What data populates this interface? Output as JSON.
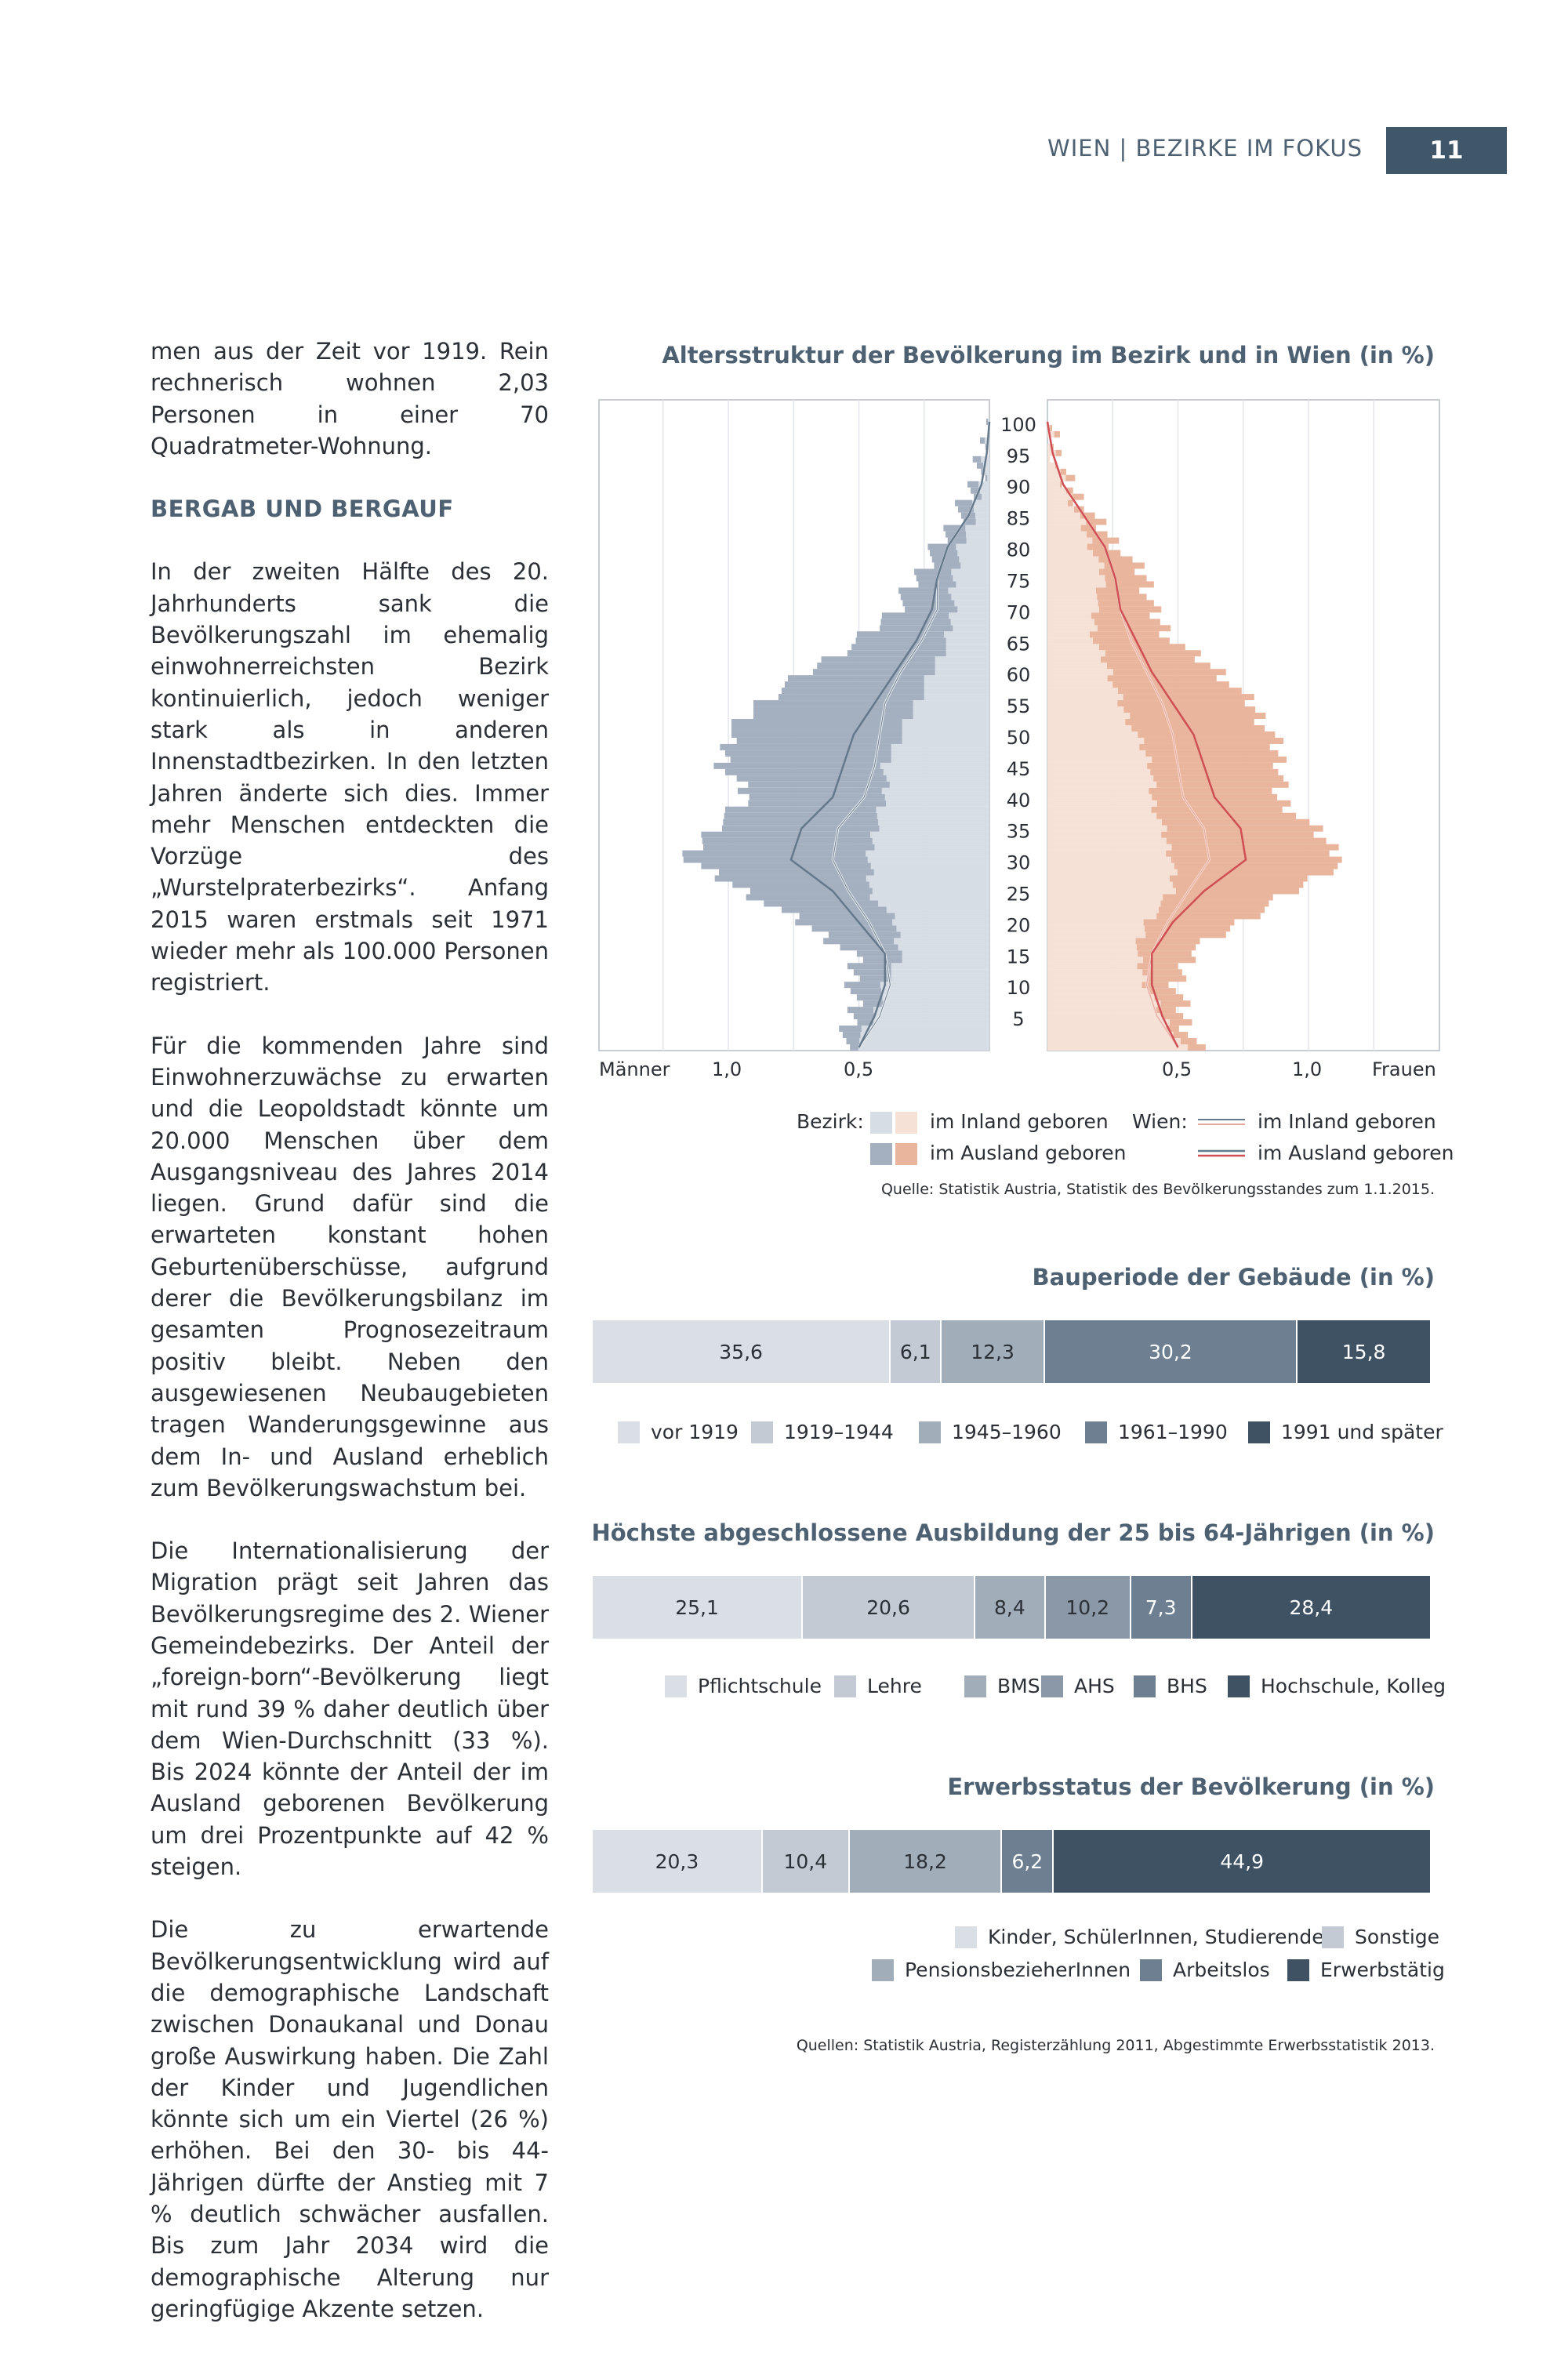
{
  "header": {
    "title": "WIEN | BEZIRKE IM FOKUS",
    "page_number": "11"
  },
  "body": {
    "p1": "men aus der Zeit vor 1919. Rein rechnerisch wohnen 2,03 Personen in einer 70 Quadratmeter-Wohnung.",
    "heading": "BERGAB UND BERGAUF",
    "p2": "In der zweiten Hälfte des 20. Jahrhunderts sank die Bevölkerungszahl im ehemalig einwohnerreichsten Bezirk kontinuierlich, jedoch weniger stark als in anderen Innenstadtbezirken. In den letzten Jahren änderte sich dies. Immer mehr Menschen entdeckten die Vorzüge des „Wurstelpraterbezirks“. Anfang 2015 waren erstmals seit 1971 wieder mehr als 100.000 Personen registriert.",
    "p3": "Für die kommenden Jahre sind Einwohnerzuwächse zu erwarten und die Leopoldstadt könnte um 20.000 Menschen über dem Ausgangsniveau des Jahres 2014 liegen. Grund dafür sind die erwarteten konstant hohen Geburtenüberschüsse, aufgrund derer die Bevölkerungsbilanz im gesamten Prognosezeitraum positiv bleibt. Neben den ausgewiesenen Neubaugebieten tragen Wanderungsgewinne aus dem In- und Ausland erheblich zum Bevölkerungswachstum bei.",
    "p4": "Die Internationalisierung der Migration prägt seit Jahren das Bevölkerungsregime des 2. Wiener Gemeindebezirks. Der Anteil der „foreign-born“-Bevölkerung liegt mit rund 39 % daher deutlich über dem Wien-Durchschnitt (33 %). Bis 2024 könnte der Anteil der im Ausland geborenen Bevölkerung um drei Prozentpunkte auf 42 % steigen.",
    "p5": "Die zu erwartende Bevölkerungsentwicklung wird auf die demographische Landschaft zwischen Donaukanal und Donau große Auswirkung haben. Die Zahl der Kinder und Jugendlichen könnte sich um ein Viertel (26 %) erhöhen. Bei den 30- bis 44-Jährigen dürfte der Anstieg mit 7 % deutlich schwächer ausfallen. Bis zum Jahr 2034 wird die demographische Alterung nur geringfügige Akzente setzen."
  },
  "pyramid_labels": {
    "left_end": "Männer",
    "right_end": "Frauen",
    "left_ticks": [
      "1,0",
      "0,5"
    ],
    "right_ticks": [
      "0,5",
      "1,0"
    ],
    "legend_bezirk": "Bezirk:",
    "legend_wien": "Wien:",
    "inland": "im Inland geboren",
    "ausland": "im Ausland geboren",
    "source": "Quelle: Statistik Austria, Statistik des Bevölkerungsstandes zum 1.1.2015."
  },
  "bottom_source": "Quellen: Statistik Austria, Registerzählung 2011, Abgestimmte Erwerbsstatistik 2013.",
  "colors": {
    "slate1": "#dadfe6",
    "slate2": "#c3cad3",
    "slate3": "#a2adba",
    "slate4": "#6d7f90",
    "slate5": "#3e5264",
    "men_inland": "#d7dde5",
    "men_ausland": "#a4b0c0",
    "women_inland": "#f5e1d5",
    "women_ausland": "#e9b59c",
    "wien_men": "#66798c",
    "wien_women": "#cf4f55"
  },
  "chart_data": [
    {
      "type": "area",
      "title": "Altersstruktur der Bevölkerung im Bezirk und in Wien (in %)",
      "y_ticks": [
        100,
        95,
        90,
        85,
        80,
        75,
        70,
        65,
        60,
        55,
        50,
        45,
        40,
        35,
        30,
        25,
        20,
        15,
        10,
        5
      ],
      "xlim": [
        0,
        1.5
      ],
      "ages": [
        0,
        5,
        10,
        15,
        20,
        25,
        30,
        35,
        40,
        45,
        50,
        55,
        60,
        65,
        70,
        75,
        80,
        85,
        90,
        95,
        100
      ],
      "series": [
        {
          "name": "im Inland geboren",
          "side": "Männer",
          "values": [
            0.52,
            0.44,
            0.4,
            0.34,
            0.36,
            0.46,
            0.46,
            0.44,
            0.4,
            0.4,
            0.34,
            0.28,
            0.22,
            0.16,
            0.14,
            0.14,
            0.11,
            0.06,
            0.03,
            0.01,
            0.0
          ]
        },
        {
          "name": "im Ausland geboren",
          "side": "Männer",
          "values": [
            0.05,
            0.08,
            0.12,
            0.18,
            0.36,
            0.48,
            0.7,
            0.62,
            0.52,
            0.62,
            0.66,
            0.6,
            0.48,
            0.34,
            0.22,
            0.14,
            0.09,
            0.06,
            0.03,
            0.01,
            0.0
          ]
        },
        {
          "name": "im Inland geboren",
          "side": "Frauen",
          "values": [
            0.52,
            0.44,
            0.38,
            0.34,
            0.38,
            0.48,
            0.48,
            0.44,
            0.4,
            0.4,
            0.34,
            0.28,
            0.24,
            0.18,
            0.18,
            0.22,
            0.17,
            0.12,
            0.06,
            0.02,
            0.0
          ]
        },
        {
          "name": "im Ausland geboren",
          "side": "Frauen",
          "values": [
            0.05,
            0.08,
            0.12,
            0.2,
            0.36,
            0.46,
            0.66,
            0.58,
            0.48,
            0.5,
            0.52,
            0.5,
            0.42,
            0.3,
            0.22,
            0.16,
            0.1,
            0.05,
            0.02,
            0.01,
            0.0
          ]
        },
        {
          "name": "Wien im Inland geboren",
          "side": "Männer",
          "values": [
            0.5,
            0.42,
            0.38,
            0.4,
            0.46,
            0.54,
            0.6,
            0.58,
            0.48,
            0.44,
            0.42,
            0.4,
            0.34,
            0.26,
            0.2,
            0.2,
            0.16,
            0.08,
            0.03,
            0.01,
            0.0
          ]
        },
        {
          "name": "Wien im Ausland geboren",
          "side": "Männer",
          "values": [
            0.5,
            0.44,
            0.4,
            0.4,
            0.5,
            0.6,
            0.76,
            0.72,
            0.6,
            0.56,
            0.52,
            0.44,
            0.36,
            0.28,
            0.22,
            0.2,
            0.16,
            0.08,
            0.03,
            0.01,
            0.0
          ]
        },
        {
          "name": "Wien im Inland geboren",
          "side": "Frauen",
          "values": [
            0.5,
            0.42,
            0.38,
            0.4,
            0.46,
            0.54,
            0.62,
            0.6,
            0.52,
            0.5,
            0.48,
            0.44,
            0.38,
            0.32,
            0.28,
            0.26,
            0.22,
            0.14,
            0.06,
            0.02,
            0.0
          ]
        },
        {
          "name": "Wien im Ausland geboren",
          "side": "Frauen",
          "values": [
            0.5,
            0.44,
            0.4,
            0.4,
            0.48,
            0.6,
            0.76,
            0.74,
            0.64,
            0.6,
            0.56,
            0.48,
            0.4,
            0.34,
            0.28,
            0.26,
            0.22,
            0.14,
            0.06,
            0.02,
            0.0
          ]
        }
      ]
    },
    {
      "type": "bar",
      "title": "Bauperiode der Gebäude (in %)",
      "categories": [
        "vor 1919",
        "1919–1944",
        "1945–1960",
        "1961–1990",
        "1991 und später"
      ],
      "values": [
        35.6,
        6.1,
        12.3,
        30.2,
        15.8
      ],
      "labels": [
        "35,6",
        "6,1",
        "12,3",
        "30,2",
        "15,8"
      ],
      "colors": [
        "#dadfe6",
        "#c3cad3",
        "#a2adba",
        "#6d7f90",
        "#3e5264"
      ]
    },
    {
      "type": "bar",
      "title": "Höchste abgeschlossene Ausbildung der 25 bis 64-Jährigen (in %)",
      "categories": [
        "Pflichtschule",
        "Lehre",
        "BMS",
        "AHS",
        "BHS",
        "Hochschule, Kolleg"
      ],
      "values": [
        25.1,
        20.6,
        8.4,
        10.2,
        7.3,
        28.4
      ],
      "labels": [
        "25,1",
        "20,6",
        "8,4",
        "10,2",
        "7,3",
        "28,4"
      ],
      "colors": [
        "#dadfe6",
        "#c3cad3",
        "#a2adba",
        "#8a98a8",
        "#6d7f90",
        "#3e5264"
      ]
    },
    {
      "type": "bar",
      "title": "Erwerbsstatus der Bevölkerung (in %)",
      "categories": [
        "Kinder, SchülerInnen, Studierende",
        "Sonstige",
        "PensionsbezieherInnen",
        "Arbeitslos",
        "Erwerbstätig"
      ],
      "values": [
        20.3,
        10.4,
        18.2,
        6.2,
        44.9
      ],
      "labels": [
        "20,3",
        "10,4",
        "18,2",
        "6,2",
        "44,9"
      ],
      "colors": [
        "#dadfe6",
        "#c3cad3",
        "#a2adba",
        "#6d7f90",
        "#3e5264"
      ]
    }
  ]
}
